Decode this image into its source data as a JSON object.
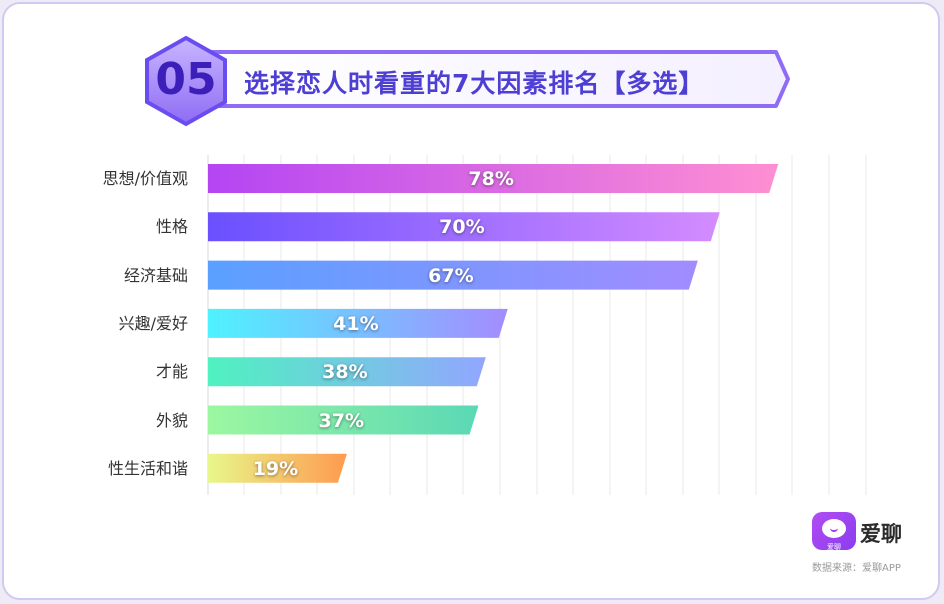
{
  "header": {
    "number": "05",
    "title": "选择恋人时看重的7大因素排名【多选】"
  },
  "colors": {
    "accent": "#5b3fe0",
    "banner_border": "#8e6cf5",
    "frame": "#d2c9f1"
  },
  "chart_data": {
    "type": "bar",
    "orientation": "horizontal",
    "categories": [
      "思想/价值观",
      "性格",
      "经济基础",
      "兴趣/爱好",
      "才能",
      "外貌",
      "性生活和谐"
    ],
    "values": [
      78,
      70,
      67,
      41,
      38,
      37,
      19
    ],
    "value_labels": [
      "78%",
      "70%",
      "67%",
      "41%",
      "38%",
      "37%",
      "19%"
    ],
    "unit": "%",
    "xlim": [
      0,
      90
    ],
    "grid": true,
    "gradients": [
      [
        "#b445f3",
        "#ff8fd2"
      ],
      [
        "#6a50ff",
        "#d48cff"
      ],
      [
        "#5aa0ff",
        "#a28cff"
      ],
      [
        "#4ff2ff",
        "#a48cff"
      ],
      [
        "#4ff2c0",
        "#92a6ff"
      ],
      [
        "#9cf7a0",
        "#5ad8b6"
      ],
      [
        "#e8f78a",
        "#ff9a50"
      ]
    ]
  },
  "brand": {
    "name": "爱聊",
    "logo_subtext": "爱聊",
    "source": "数据来源：爱聊APP"
  }
}
